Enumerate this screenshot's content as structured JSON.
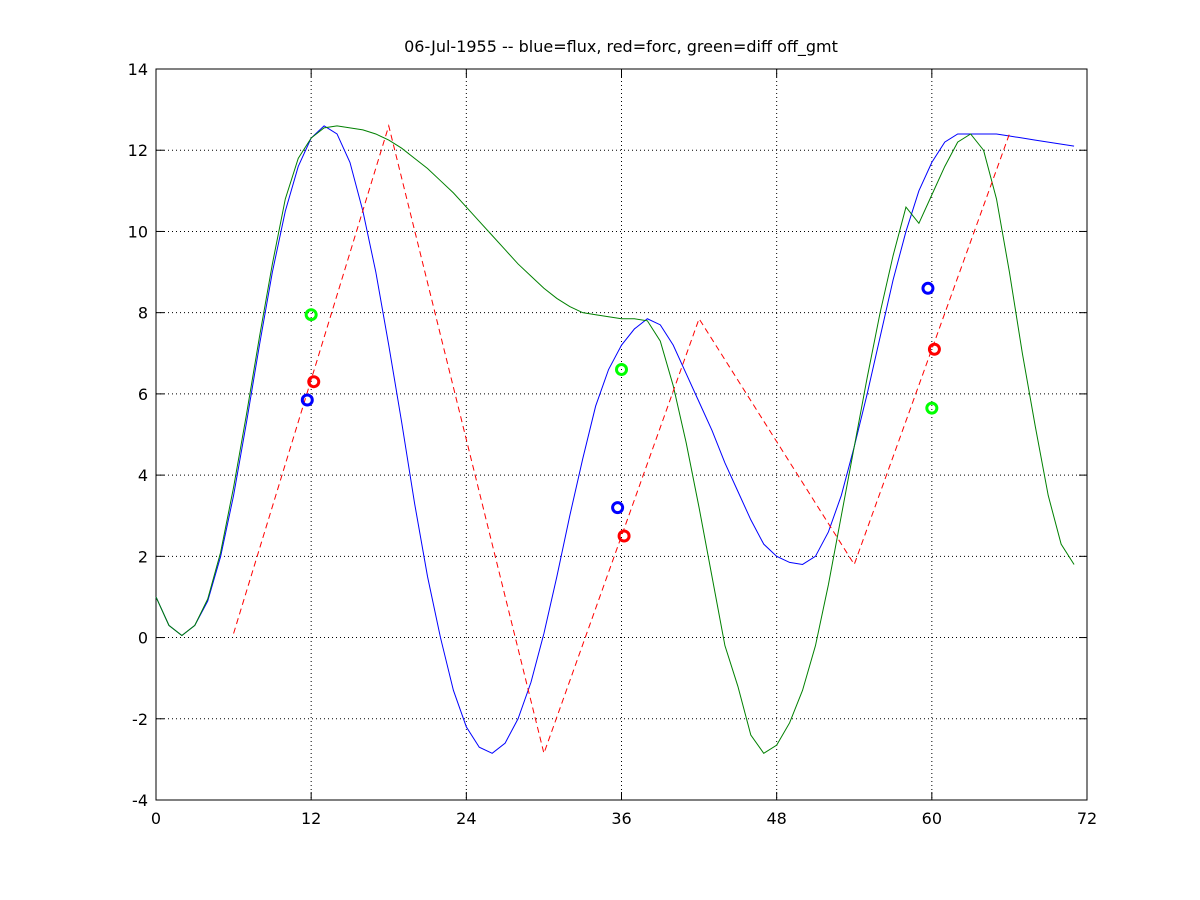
{
  "chart_data": {
    "type": "line",
    "title": "06-Jul-1955 -- blue=flux, red=forc, green=diff off_gmt",
    "xlim": [
      0,
      72
    ],
    "xticks": [
      0,
      12,
      24,
      36,
      48,
      60,
      72
    ],
    "ylim": [
      -4,
      14
    ],
    "yticks": [
      -4,
      -2,
      0,
      2,
      4,
      6,
      8,
      10,
      12,
      14
    ],
    "grid": true,
    "series": [
      {
        "color": "#0000ff",
        "style": "solid",
        "x": [
          0,
          1,
          2,
          3,
          4,
          5,
          6,
          7,
          8,
          9,
          10,
          11,
          12,
          13,
          14,
          15,
          16,
          17,
          18,
          19,
          20,
          21,
          22,
          23,
          24,
          25,
          26,
          27,
          28,
          29,
          30,
          31,
          32,
          33,
          34,
          35,
          36,
          37,
          38,
          39,
          40,
          41,
          42,
          43,
          44,
          45,
          46,
          47,
          48,
          49,
          50,
          51,
          52,
          53,
          54,
          55,
          56,
          57,
          58,
          59,
          60,
          61,
          62,
          63,
          64,
          65,
          66,
          67,
          68,
          69,
          70,
          71
        ],
        "values": [
          1.0,
          0.3,
          0.05,
          0.3,
          0.9,
          2.0,
          3.5,
          5.3,
          7.2,
          9.0,
          10.5,
          11.6,
          12.3,
          12.6,
          12.4,
          11.7,
          10.5,
          9.0,
          7.2,
          5.3,
          3.3,
          1.5,
          0.0,
          -1.3,
          -2.2,
          -2.7,
          -2.85,
          -2.6,
          -2.0,
          -1.1,
          0.1,
          1.5,
          3.0,
          4.4,
          5.7,
          6.6,
          7.2,
          7.6,
          7.85,
          7.7,
          7.2,
          6.5,
          5.8,
          5.1,
          4.3,
          3.6,
          2.9,
          2.3,
          2.0,
          1.85,
          1.8,
          2.0,
          2.6,
          3.5,
          4.7,
          6.0,
          7.4,
          8.8,
          10.0,
          11.0,
          11.7,
          12.2,
          12.4,
          12.4,
          12.4,
          12.4,
          12.35,
          12.3,
          12.25,
          12.2,
          12.15,
          12.1
        ]
      },
      {
        "color": "#008000",
        "style": "solid",
        "x": [
          0,
          1,
          2,
          3,
          4,
          5,
          6,
          7,
          8,
          9,
          10,
          11,
          12,
          13,
          14,
          15,
          16,
          17,
          18,
          19,
          20,
          21,
          22,
          23,
          24,
          25,
          26,
          27,
          28,
          29,
          30,
          31,
          32,
          33,
          34,
          35,
          36,
          37,
          38,
          39,
          40,
          41,
          42,
          43,
          44,
          45,
          46,
          47,
          48,
          49,
          50,
          51,
          52,
          53,
          54,
          55,
          56,
          57,
          58,
          59,
          60,
          61,
          62,
          63,
          64,
          65,
          66,
          67,
          68,
          69,
          70,
          71
        ],
        "values": [
          1.0,
          0.3,
          0.05,
          0.3,
          0.95,
          2.1,
          3.7,
          5.5,
          7.4,
          9.2,
          10.8,
          11.8,
          12.3,
          12.55,
          12.6,
          12.55,
          12.5,
          12.4,
          12.25,
          12.05,
          11.8,
          11.55,
          11.25,
          10.95,
          10.6,
          10.25,
          9.9,
          9.55,
          9.2,
          8.9,
          8.6,
          8.35,
          8.15,
          8.0,
          7.95,
          7.9,
          7.85,
          7.85,
          7.8,
          7.3,
          6.2,
          4.8,
          3.2,
          1.5,
          -0.2,
          -1.2,
          -2.4,
          -2.85,
          -2.65,
          -2.1,
          -1.3,
          -0.2,
          1.3,
          3.0,
          4.7,
          6.4,
          8.0,
          9.4,
          10.6,
          10.2,
          10.9,
          11.6,
          12.2,
          12.4,
          12.0,
          10.8,
          9.0,
          7.0,
          5.2,
          3.5,
          2.3,
          1.8
        ]
      },
      {
        "color": "#ff0000",
        "style": "dashed",
        "x": [
          6,
          18,
          30,
          42,
          54,
          66
        ],
        "values": [
          0.1,
          12.6,
          -2.85,
          7.85,
          1.8,
          12.4
        ]
      },
      {
        "color": "#0000ff",
        "marker": "o",
        "x": [
          11.7,
          35.7,
          59.7
        ],
        "values": [
          5.85,
          3.2,
          8.6
        ]
      },
      {
        "color": "#ff0000",
        "marker": "o",
        "x": [
          12.2,
          36.2,
          60.2
        ],
        "values": [
          6.3,
          2.5,
          7.1
        ]
      },
      {
        "color": "#00ff00",
        "marker": "o",
        "x": [
          12.0,
          36.0,
          60.0
        ],
        "values": [
          7.95,
          6.6,
          5.65
        ]
      }
    ]
  }
}
